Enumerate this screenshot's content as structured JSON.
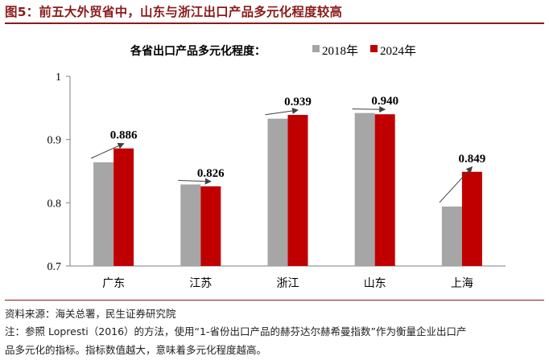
{
  "figure": {
    "title": "图5：前五大外贸省中，山东与浙江出口产品多元化程度较高",
    "source": "资料来源：海关总署，民生证券研究院",
    "note_line1": "注：参照 Lopresti（2016）的方法，使用“1-省份出口产品的赫芬达尔赫希曼指数”作为衡量企业出口产",
    "note_line2": "品多元化的指标。指标数值越大，意味着多元化程度越高。"
  },
  "chart_data": {
    "type": "bar",
    "title": "各省出口产品多元化程度：",
    "categories": [
      "广东",
      "江苏",
      "浙江",
      "山东",
      "上海"
    ],
    "series": [
      {
        "name": "2018年",
        "values": [
          0.864,
          0.829,
          0.933,
          0.942,
          0.794
        ],
        "color": "#a6a6a6"
      },
      {
        "name": "2024年",
        "values": [
          0.886,
          0.826,
          0.939,
          0.94,
          0.849
        ],
        "color": "#c00000"
      }
    ],
    "data_labels": [
      "0.886",
      "0.826",
      "0.939",
      "0.940",
      "0.849"
    ],
    "ylim": [
      0.7,
      1.0
    ],
    "yticks": [
      "0.7",
      "0.8",
      "0.9",
      "1"
    ],
    "xlabel": "",
    "ylabel": "",
    "grid": false,
    "legend_position": "top-right",
    "arrow_color": "#404040"
  }
}
